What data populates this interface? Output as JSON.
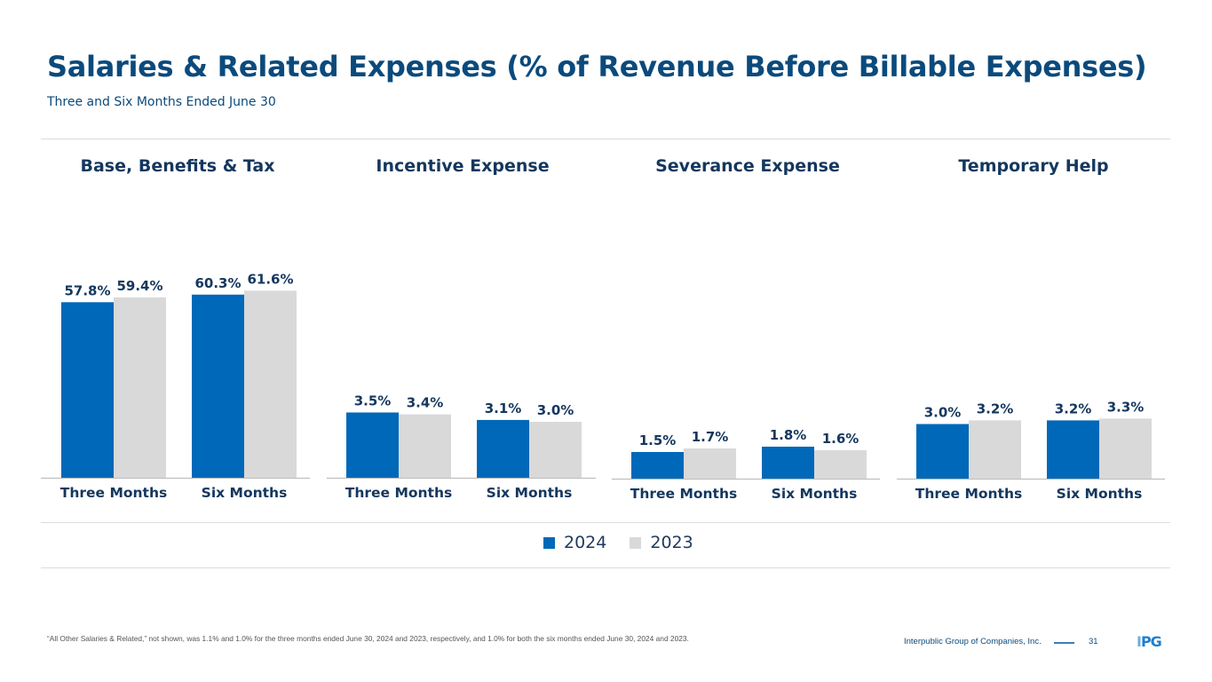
{
  "header": {
    "title": "Salaries & Related Expenses (% of Revenue Before Billable Expenses)",
    "subtitle": "Three and Six Months Ended June 30"
  },
  "colors": {
    "series_2024": "#0068b8",
    "series_2023": "#d9d9d9",
    "title": "#0b4a7c",
    "label": "#14375e"
  },
  "chart_data": [
    {
      "type": "bar",
      "title": "Base, Benefits & Tax",
      "categories": [
        "Three Months",
        "Six Months"
      ],
      "series": [
        {
          "name": "2024",
          "values": [
            57.8,
            60.3
          ],
          "labels": [
            "57.8%",
            "60.3%"
          ]
        },
        {
          "name": "2023",
          "values": [
            59.4,
            61.6
          ],
          "labels": [
            "59.4%",
            "61.6%"
          ]
        }
      ],
      "unit": "%",
      "legend": "bottom-center"
    },
    {
      "type": "bar",
      "title": "Incentive Expense",
      "categories": [
        "Three Months",
        "Six Months"
      ],
      "series": [
        {
          "name": "2024",
          "values": [
            3.5,
            3.1
          ],
          "labels": [
            "3.5%",
            "3.1%"
          ]
        },
        {
          "name": "2023",
          "values": [
            3.4,
            3.0
          ],
          "labels": [
            "3.4%",
            "3.0%"
          ]
        }
      ],
      "unit": "%",
      "legend": "bottom-center"
    },
    {
      "type": "bar",
      "title": "Severance Expense",
      "categories": [
        "Three Months",
        "Six Months"
      ],
      "series": [
        {
          "name": "2024",
          "values": [
            1.5,
            1.8
          ],
          "labels": [
            "1.5%",
            "1.8%"
          ]
        },
        {
          "name": "2023",
          "values": [
            1.7,
            1.6
          ],
          "labels": [
            "1.7%",
            "1.6%"
          ]
        }
      ],
      "unit": "%",
      "legend": "bottom-center"
    },
    {
      "type": "bar",
      "title": "Temporary Help",
      "categories": [
        "Three Months",
        "Six Months"
      ],
      "series": [
        {
          "name": "2024",
          "values": [
            3.0,
            3.2
          ],
          "labels": [
            "3.0%",
            "3.2%"
          ]
        },
        {
          "name": "2023",
          "values": [
            3.2,
            3.3
          ],
          "labels": [
            "3.2%",
            "3.3%"
          ]
        }
      ],
      "unit": "%",
      "legend": "bottom-center"
    }
  ],
  "legend": {
    "items": [
      {
        "label": "2024"
      },
      {
        "label": "2023"
      }
    ]
  },
  "footer": {
    "footnote": "“All Other Salaries & Related,” not shown, was 1.1% and 1.0% for the three months ended June 30, 2024 and 2023, respectively, and 1.0% for both the six months ended June 30, 2024 and 2023.",
    "company": "Interpublic Group of Companies, Inc.",
    "page_number": "31",
    "logo_text_1": "I",
    "logo_text_2": "PG"
  }
}
